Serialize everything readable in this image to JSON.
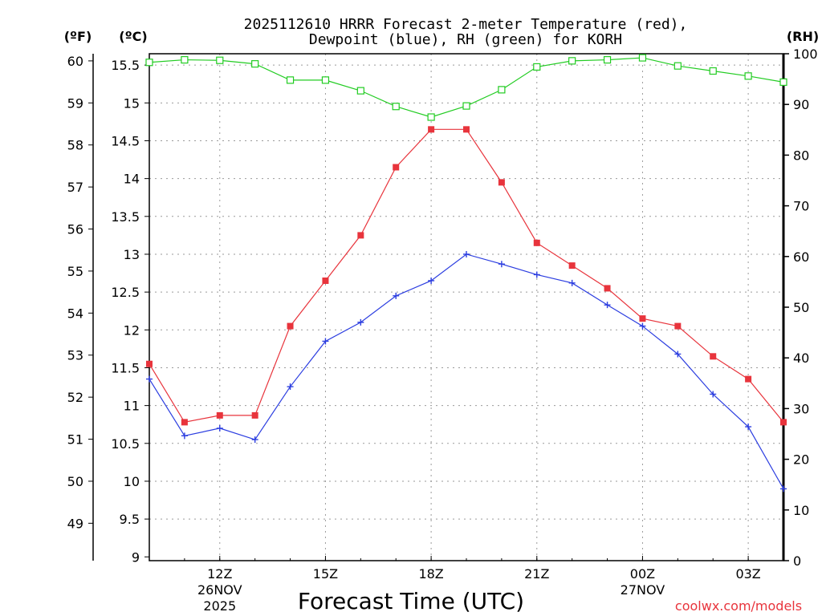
{
  "chart_data": {
    "type": "line",
    "title_line1": "2025112610 HRRR Forecast 2-meter Temperature (red),",
    "title_line2": "Dewpoint (blue), RH (green) for KORH",
    "axis_unit_f": "(ºF)",
    "axis_unit_c": "(ºC)",
    "axis_unit_rh": "(RH)",
    "xlabel": "Forecast Time (UTC)",
    "watermark": "coolwx.com/models",
    "x_hours": [
      10,
      11,
      12,
      13,
      14,
      15,
      16,
      17,
      18,
      19,
      20,
      21,
      22,
      23,
      24,
      25,
      26,
      27,
      28
    ],
    "xlim": [
      10,
      28
    ],
    "celsius_ylim": [
      8.95,
      15.65
    ],
    "rh_ylim": [
      0,
      100
    ],
    "celsius_ticks": [
      9,
      9.5,
      10,
      10.5,
      11,
      11.5,
      12,
      12.5,
      13,
      13.5,
      14,
      14.5,
      15,
      15.5
    ],
    "celsius_tick_labels": [
      "9",
      "9.5",
      "10",
      "10.5",
      "11",
      "11.5",
      "12",
      "12.5",
      "13",
      "13.5",
      "14",
      "14.5",
      "15",
      "15.5"
    ],
    "fahrenheit_ticks": [
      49,
      50,
      51,
      52,
      53,
      54,
      55,
      56,
      57,
      58,
      59,
      60
    ],
    "fahrenheit_tick_labels": [
      "49",
      "50",
      "51",
      "52",
      "53",
      "54",
      "55",
      "56",
      "57",
      "58",
      "59",
      "60"
    ],
    "rh_ticks": [
      0,
      10,
      20,
      30,
      40,
      50,
      60,
      70,
      80,
      90,
      100
    ],
    "rh_tick_labels": [
      "0",
      "10",
      "20",
      "30",
      "40",
      "50",
      "60",
      "70",
      "80",
      "90",
      "100"
    ],
    "x_ticks": [
      {
        "hour": 12,
        "label": "12Z",
        "date": "26NOV",
        "year": "2025"
      },
      {
        "hour": 15,
        "label": "15Z",
        "date": "",
        "year": ""
      },
      {
        "hour": 18,
        "label": "18Z",
        "date": "",
        "year": ""
      },
      {
        "hour": 21,
        "label": "21Z",
        "date": "",
        "year": ""
      },
      {
        "hour": 24,
        "label": "00Z",
        "date": "27NOV",
        "year": ""
      },
      {
        "hour": 27,
        "label": "03Z",
        "date": "",
        "year": ""
      }
    ],
    "series": [
      {
        "name": "Temperature",
        "unit": "C",
        "color": "#e8343c",
        "marker": "filled-square",
        "values": [
          11.55,
          10.78,
          10.87,
          10.87,
          12.05,
          12.65,
          13.25,
          14.15,
          14.65,
          14.65,
          13.95,
          13.15,
          12.85,
          12.55,
          12.15,
          12.05,
          11.65,
          11.35,
          10.78
        ]
      },
      {
        "name": "Dewpoint",
        "unit": "C",
        "color": "#2b3de0",
        "marker": "plus",
        "values": [
          11.35,
          10.6,
          10.7,
          10.55,
          11.25,
          11.85,
          12.1,
          12.45,
          12.65,
          13.0,
          12.87,
          12.73,
          12.62,
          12.33,
          12.05,
          11.68,
          11.15,
          10.72,
          9.9
        ]
      },
      {
        "name": "RH",
        "unit": "%",
        "color": "#22cc22",
        "marker": "open-square",
        "values": [
          98.3,
          98.8,
          98.7,
          98.0,
          94.8,
          94.8,
          92.7,
          89.6,
          87.5,
          89.7,
          92.9,
          97.4,
          98.6,
          98.8,
          99.2,
          97.6,
          96.6,
          95.6,
          94.4
        ]
      }
    ]
  }
}
